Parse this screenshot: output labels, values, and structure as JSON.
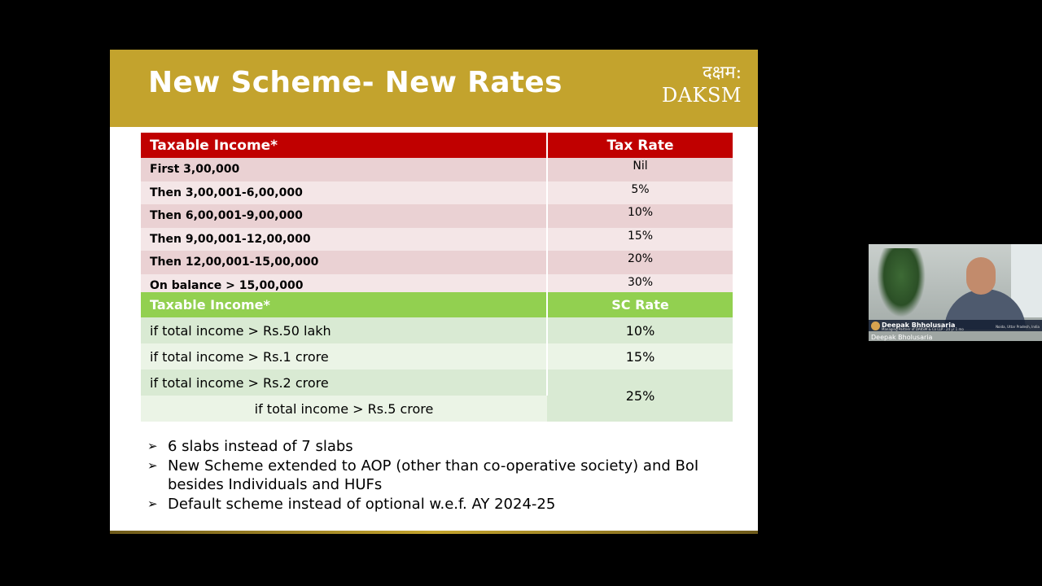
{
  "slide": {
    "title": "New Scheme- New Rates",
    "logo_hindi": "दक्षम:",
    "logo_text": "DAKSM"
  },
  "tax_table": {
    "headers": [
      "Taxable Income*",
      "Tax Rate"
    ],
    "rows": [
      {
        "income": "First 3,00,000",
        "rate": "Nil"
      },
      {
        "income": "Then 3,00,001-6,00,000",
        "rate": "5%"
      },
      {
        "income": "Then 6,00,001-9,00,000",
        "rate": "10%"
      },
      {
        "income": "Then 9,00,001-12,00,000",
        "rate": "15%"
      },
      {
        "income": "Then 12,00,001-15,00,000",
        "rate": "20%"
      },
      {
        "income": "On balance > 15,00,000",
        "rate": "30%"
      }
    ]
  },
  "sc_table": {
    "headers": [
      "Taxable Income*",
      "SC Rate"
    ],
    "rows": [
      {
        "income": "if total income > Rs.50 lakh",
        "rate": "10%"
      },
      {
        "income": "if total income > Rs.1 crore",
        "rate": "15%"
      },
      {
        "income": "if total income > Rs.2 crore",
        "rate": "25%"
      },
      {
        "income": "if total income > Rs.5 crore"
      }
    ]
  },
  "bullets": [
    "6 slabs instead of 7 slabs",
    "New Scheme extended to AOP (other than co-operative society) and BoI besides Individuals and HUFs",
    "Default scheme instead of optional w.e.f. AY 2024-25"
  ],
  "bullet_marker": "➢",
  "video": {
    "overlay_name": "Deepak Bhholusaria",
    "overlay_subtitle": "Managing Partner of DAKSM & Co LLP · 24 yr 1 mo",
    "overlay_location": "Noida, Uttar Pradesh, India",
    "participant_name": "Deepak Bholusaria"
  },
  "colors": {
    "header_gold": "#c3a32d",
    "tax_header_red": "#c00000",
    "sc_header_green": "#92d050"
  }
}
